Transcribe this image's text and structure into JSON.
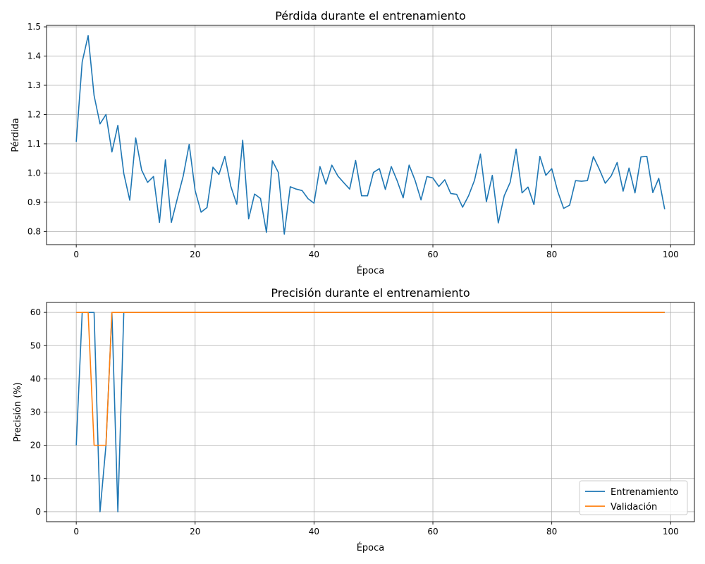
{
  "colors": {
    "series1": "#1f77b4",
    "series2": "#ff7f0e",
    "grid": "#b0b0b0"
  },
  "chart_data": [
    {
      "type": "line",
      "title": "Pérdida durante el entrenamiento",
      "xlabel": "Época",
      "ylabel": "Pérdida",
      "xlim": [
        -5,
        104
      ],
      "ylim": [
        0.755,
        1.505
      ],
      "xticks": [
        0,
        20,
        40,
        60,
        80,
        100
      ],
      "yticks": [
        0.8,
        0.9,
        1.0,
        1.1,
        1.2,
        1.3,
        1.4,
        1.5
      ],
      "ytick_labels": [
        "0.8",
        "0.9",
        "1.0",
        "1.1",
        "1.2",
        "1.3",
        "1.4",
        "1.5"
      ],
      "grid": true,
      "legend": null,
      "series": [
        {
          "name": "",
          "color": "#1f77b4",
          "x": [
            0,
            1,
            2,
            3,
            4,
            5,
            6,
            7,
            8,
            9,
            10,
            11,
            12,
            13,
            14,
            15,
            16,
            17,
            18,
            19,
            20,
            21,
            22,
            23,
            24,
            25,
            26,
            27,
            28,
            29,
            30,
            31,
            32,
            33,
            34,
            35,
            36,
            37,
            38,
            39,
            40,
            41,
            42,
            43,
            44,
            45,
            46,
            47,
            48,
            49,
            50,
            51,
            52,
            53,
            54,
            55,
            56,
            57,
            58,
            59,
            60,
            61,
            62,
            63,
            64,
            65,
            66,
            67,
            68,
            69,
            70,
            71,
            72,
            73,
            74,
            75,
            76,
            77,
            78,
            79,
            80,
            81,
            82,
            83,
            84,
            85,
            86,
            87,
            88,
            89,
            90,
            91,
            92,
            93,
            94,
            95,
            96,
            97,
            98,
            99
          ],
          "y": [
            1.107,
            1.38,
            1.47,
            1.265,
            1.168,
            1.2,
            1.072,
            1.163,
            0.998,
            0.907,
            1.12,
            1.01,
            0.968,
            0.988,
            0.831,
            1.045,
            0.831,
            0.912,
            0.99,
            1.098,
            0.94,
            0.866,
            0.882,
            1.02,
            0.995,
            1.057,
            0.955,
            0.893,
            1.112,
            0.843,
            0.928,
            0.913,
            0.797,
            1.042,
            1.002,
            0.791,
            0.953,
            0.945,
            0.94,
            0.912,
            0.897,
            1.022,
            0.962,
            1.027,
            0.99,
            0.967,
            0.945,
            1.043,
            0.922,
            0.922,
            1.002,
            1.015,
            0.944,
            1.022,
            0.973,
            0.915,
            1.027,
            0.975,
            0.908,
            0.988,
            0.983,
            0.954,
            0.977,
            0.93,
            0.927,
            0.883,
            0.922,
            0.975,
            1.065,
            0.902,
            0.992,
            0.829,
            0.922,
            0.968,
            1.082,
            0.932,
            0.952,
            0.892,
            1.057,
            0.992,
            1.015,
            0.937,
            0.879,
            0.89,
            0.974,
            0.972,
            0.974,
            1.056,
            1.013,
            0.965,
            0.99,
            1.036,
            0.938,
            1.017,
            0.932,
            1.055,
            1.057,
            0.933,
            0.982,
            0.876
          ]
        }
      ]
    },
    {
      "type": "line",
      "title": "Precisión durante el entrenamiento",
      "xlabel": "Época",
      "ylabel": "Precisión (%)",
      "xlim": [
        -5,
        104
      ],
      "ylim": [
        -3,
        63
      ],
      "xticks": [
        0,
        20,
        40,
        60,
        80,
        100
      ],
      "yticks": [
        0,
        10,
        20,
        30,
        40,
        50,
        60
      ],
      "ytick_labels": [
        "0",
        "10",
        "20",
        "30",
        "40",
        "50",
        "60"
      ],
      "grid": true,
      "legend": "lower-right",
      "series": [
        {
          "name": "Entrenamiento",
          "color": "#1f77b4",
          "x": [
            0,
            1,
            2,
            3,
            4,
            5,
            6,
            7,
            8,
            99
          ],
          "y": [
            20,
            60,
            60,
            60,
            0,
            20,
            60,
            0,
            60,
            60
          ]
        },
        {
          "name": "Validación",
          "color": "#ff7f0e",
          "x": [
            0,
            1,
            2,
            3,
            4,
            5,
            6,
            99
          ],
          "y": [
            60,
            60,
            60,
            20,
            20,
            20,
            60,
            60
          ]
        }
      ]
    }
  ]
}
